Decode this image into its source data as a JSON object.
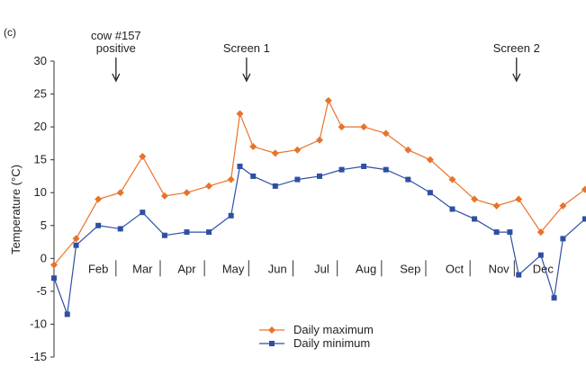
{
  "chart_data": {
    "type": "line",
    "panel_label": "(c)",
    "ylabel": "Temperature (°C)",
    "ylim": [
      -15,
      30
    ],
    "yticks": [
      30,
      25,
      20,
      15,
      10,
      5,
      0,
      -5,
      -10,
      -15
    ],
    "x_range": [
      0,
      12
    ],
    "months": [
      "Feb",
      "Mar",
      "Apr",
      "May",
      "Jun",
      "Jul",
      "Aug",
      "Sep",
      "Oct",
      "Nov",
      "Dec"
    ],
    "month_centers": [
      1.0,
      2.0,
      3.0,
      4.05,
      5.05,
      6.05,
      7.05,
      8.05,
      9.05,
      10.05,
      11.05
    ],
    "month_separators": [
      1.4,
      2.4,
      3.4,
      4.4,
      5.4,
      6.4,
      7.4,
      8.4,
      9.4,
      10.4
    ],
    "annotations": [
      {
        "text_lines": [
          "cow #157",
          "positive"
        ],
        "x": 1.4
      },
      {
        "text_lines": [
          "Screen 1"
        ],
        "x": 4.35
      },
      {
        "text_lines": [
          "Screen 2"
        ],
        "x": 10.45
      }
    ],
    "legend": {
      "position": "bottom-center",
      "entries": [
        "Daily maximum",
        "Daily minimum"
      ]
    },
    "series": [
      {
        "name": "Daily maximum",
        "color": "#E8732A",
        "marker": "diamond",
        "x": [
          0.0,
          0.5,
          1.0,
          1.5,
          2.0,
          2.5,
          3.0,
          3.5,
          4.0,
          4.2,
          4.5,
          5.0,
          5.5,
          6.0,
          6.2,
          6.5,
          7.0,
          7.5,
          8.0,
          8.5,
          9.0,
          9.5,
          10.0,
          10.5,
          11.0,
          11.5,
          12.0
        ],
        "values": [
          -1.0,
          3.0,
          9.0,
          10.0,
          15.5,
          9.5,
          10.0,
          11.0,
          12.0,
          22.0,
          17.0,
          16.0,
          16.5,
          18.0,
          24.0,
          20.0,
          20.0,
          19.0,
          16.5,
          15.0,
          12.0,
          9.0,
          8.0,
          9.0,
          4.0,
          8.0,
          10.5
        ]
      },
      {
        "name": "Daily minimum",
        "color": "#2E4FA3",
        "marker": "square",
        "x": [
          0.0,
          0.3,
          0.5,
          1.0,
          1.5,
          2.0,
          2.5,
          3.0,
          3.5,
          4.0,
          4.2,
          4.5,
          5.0,
          5.5,
          6.0,
          6.5,
          7.0,
          7.5,
          8.0,
          8.5,
          9.0,
          9.5,
          10.0,
          10.3,
          10.5,
          11.0,
          11.3,
          11.5,
          12.0
        ],
        "values": [
          -3.0,
          -8.5,
          2.0,
          5.0,
          4.5,
          7.0,
          3.5,
          4.0,
          4.0,
          6.5,
          14.0,
          12.5,
          11.0,
          12.0,
          12.5,
          13.5,
          14.0,
          13.5,
          12.0,
          10.0,
          7.5,
          6.0,
          4.0,
          4.0,
          -2.5,
          0.5,
          -6.0,
          3.0,
          6.0
        ]
      }
    ]
  }
}
